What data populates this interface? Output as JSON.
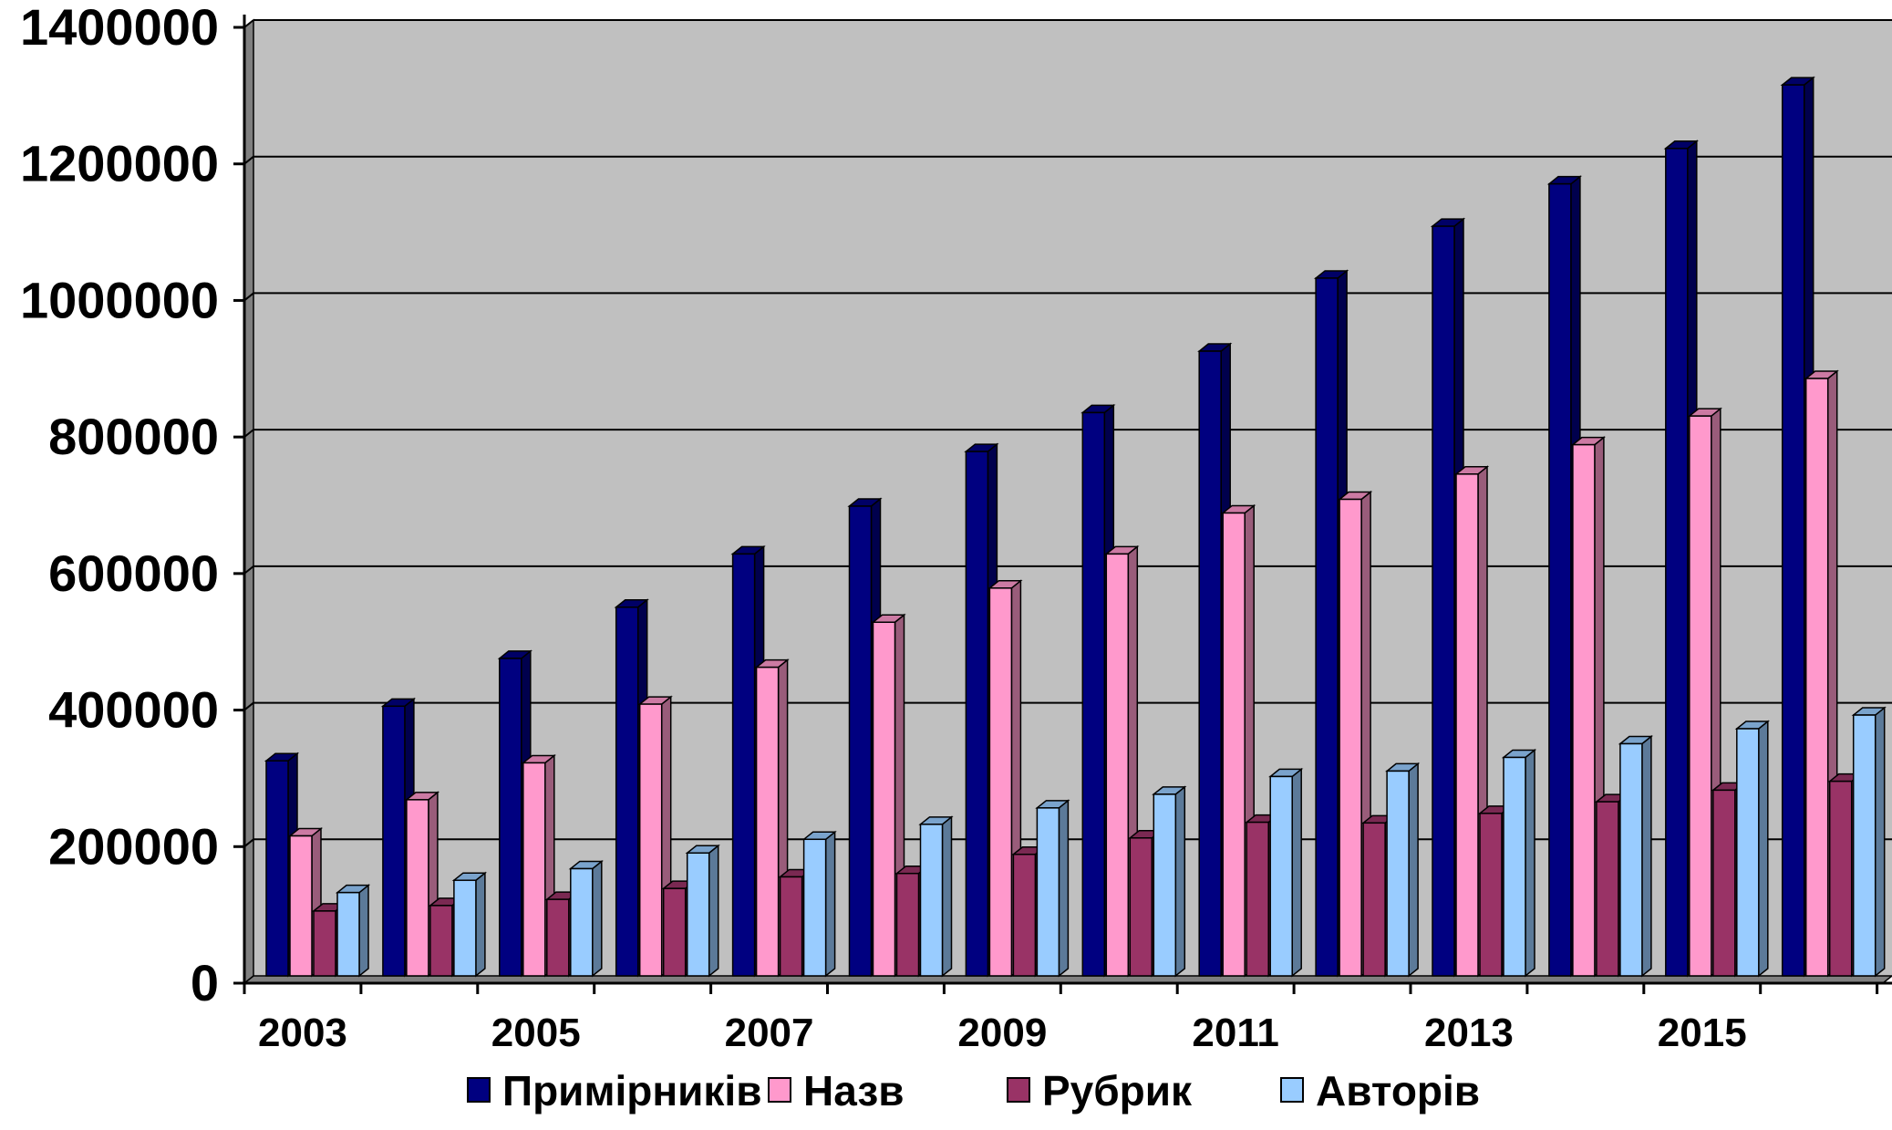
{
  "chart_data": {
    "type": "bar",
    "categories": [
      "2003",
      "2004",
      "2005",
      "2006",
      "2007",
      "2008",
      "2009",
      "2010",
      "2011",
      "2012",
      "2013",
      "2014",
      "2015",
      "2016"
    ],
    "x_tick_labels": [
      "2003",
      "2005",
      "2007",
      "2009",
      "2011",
      "2013",
      "2015"
    ],
    "series": [
      {
        "name": "Примірників",
        "color": "#000080",
        "values": [
          315000,
          395000,
          465000,
          540000,
          618000,
          688000,
          768000,
          825000,
          915000,
          1022000,
          1098000,
          1160000,
          1212000,
          1305000
        ]
      },
      {
        "name": "Назв",
        "color": "#ff99cc",
        "values": [
          205000,
          258000,
          312000,
          398000,
          452000,
          518000,
          568000,
          618000,
          678000,
          698000,
          735000,
          778000,
          820000,
          875000
        ]
      },
      {
        "name": "Рубрик",
        "color": "#993366",
        "values": [
          95000,
          103000,
          112000,
          128000,
          145000,
          150000,
          178000,
          202000,
          225000,
          224000,
          238000,
          255000,
          272000,
          285000
        ]
      },
      {
        "name": "Авторів",
        "color": "#99ccff",
        "values": [
          122000,
          140000,
          157000,
          180000,
          200000,
          222000,
          246000,
          266000,
          292000,
          300000,
          320000,
          340000,
          362000,
          382000
        ]
      }
    ],
    "ylim": [
      0,
      1400000
    ],
    "y_ticks": [
      "0",
      "200000",
      "400000",
      "600000",
      "800000",
      "1000000",
      "1200000",
      "1400000"
    ],
    "grid": true,
    "legend": "bottom",
    "plot_background": "#c0c0c0"
  }
}
